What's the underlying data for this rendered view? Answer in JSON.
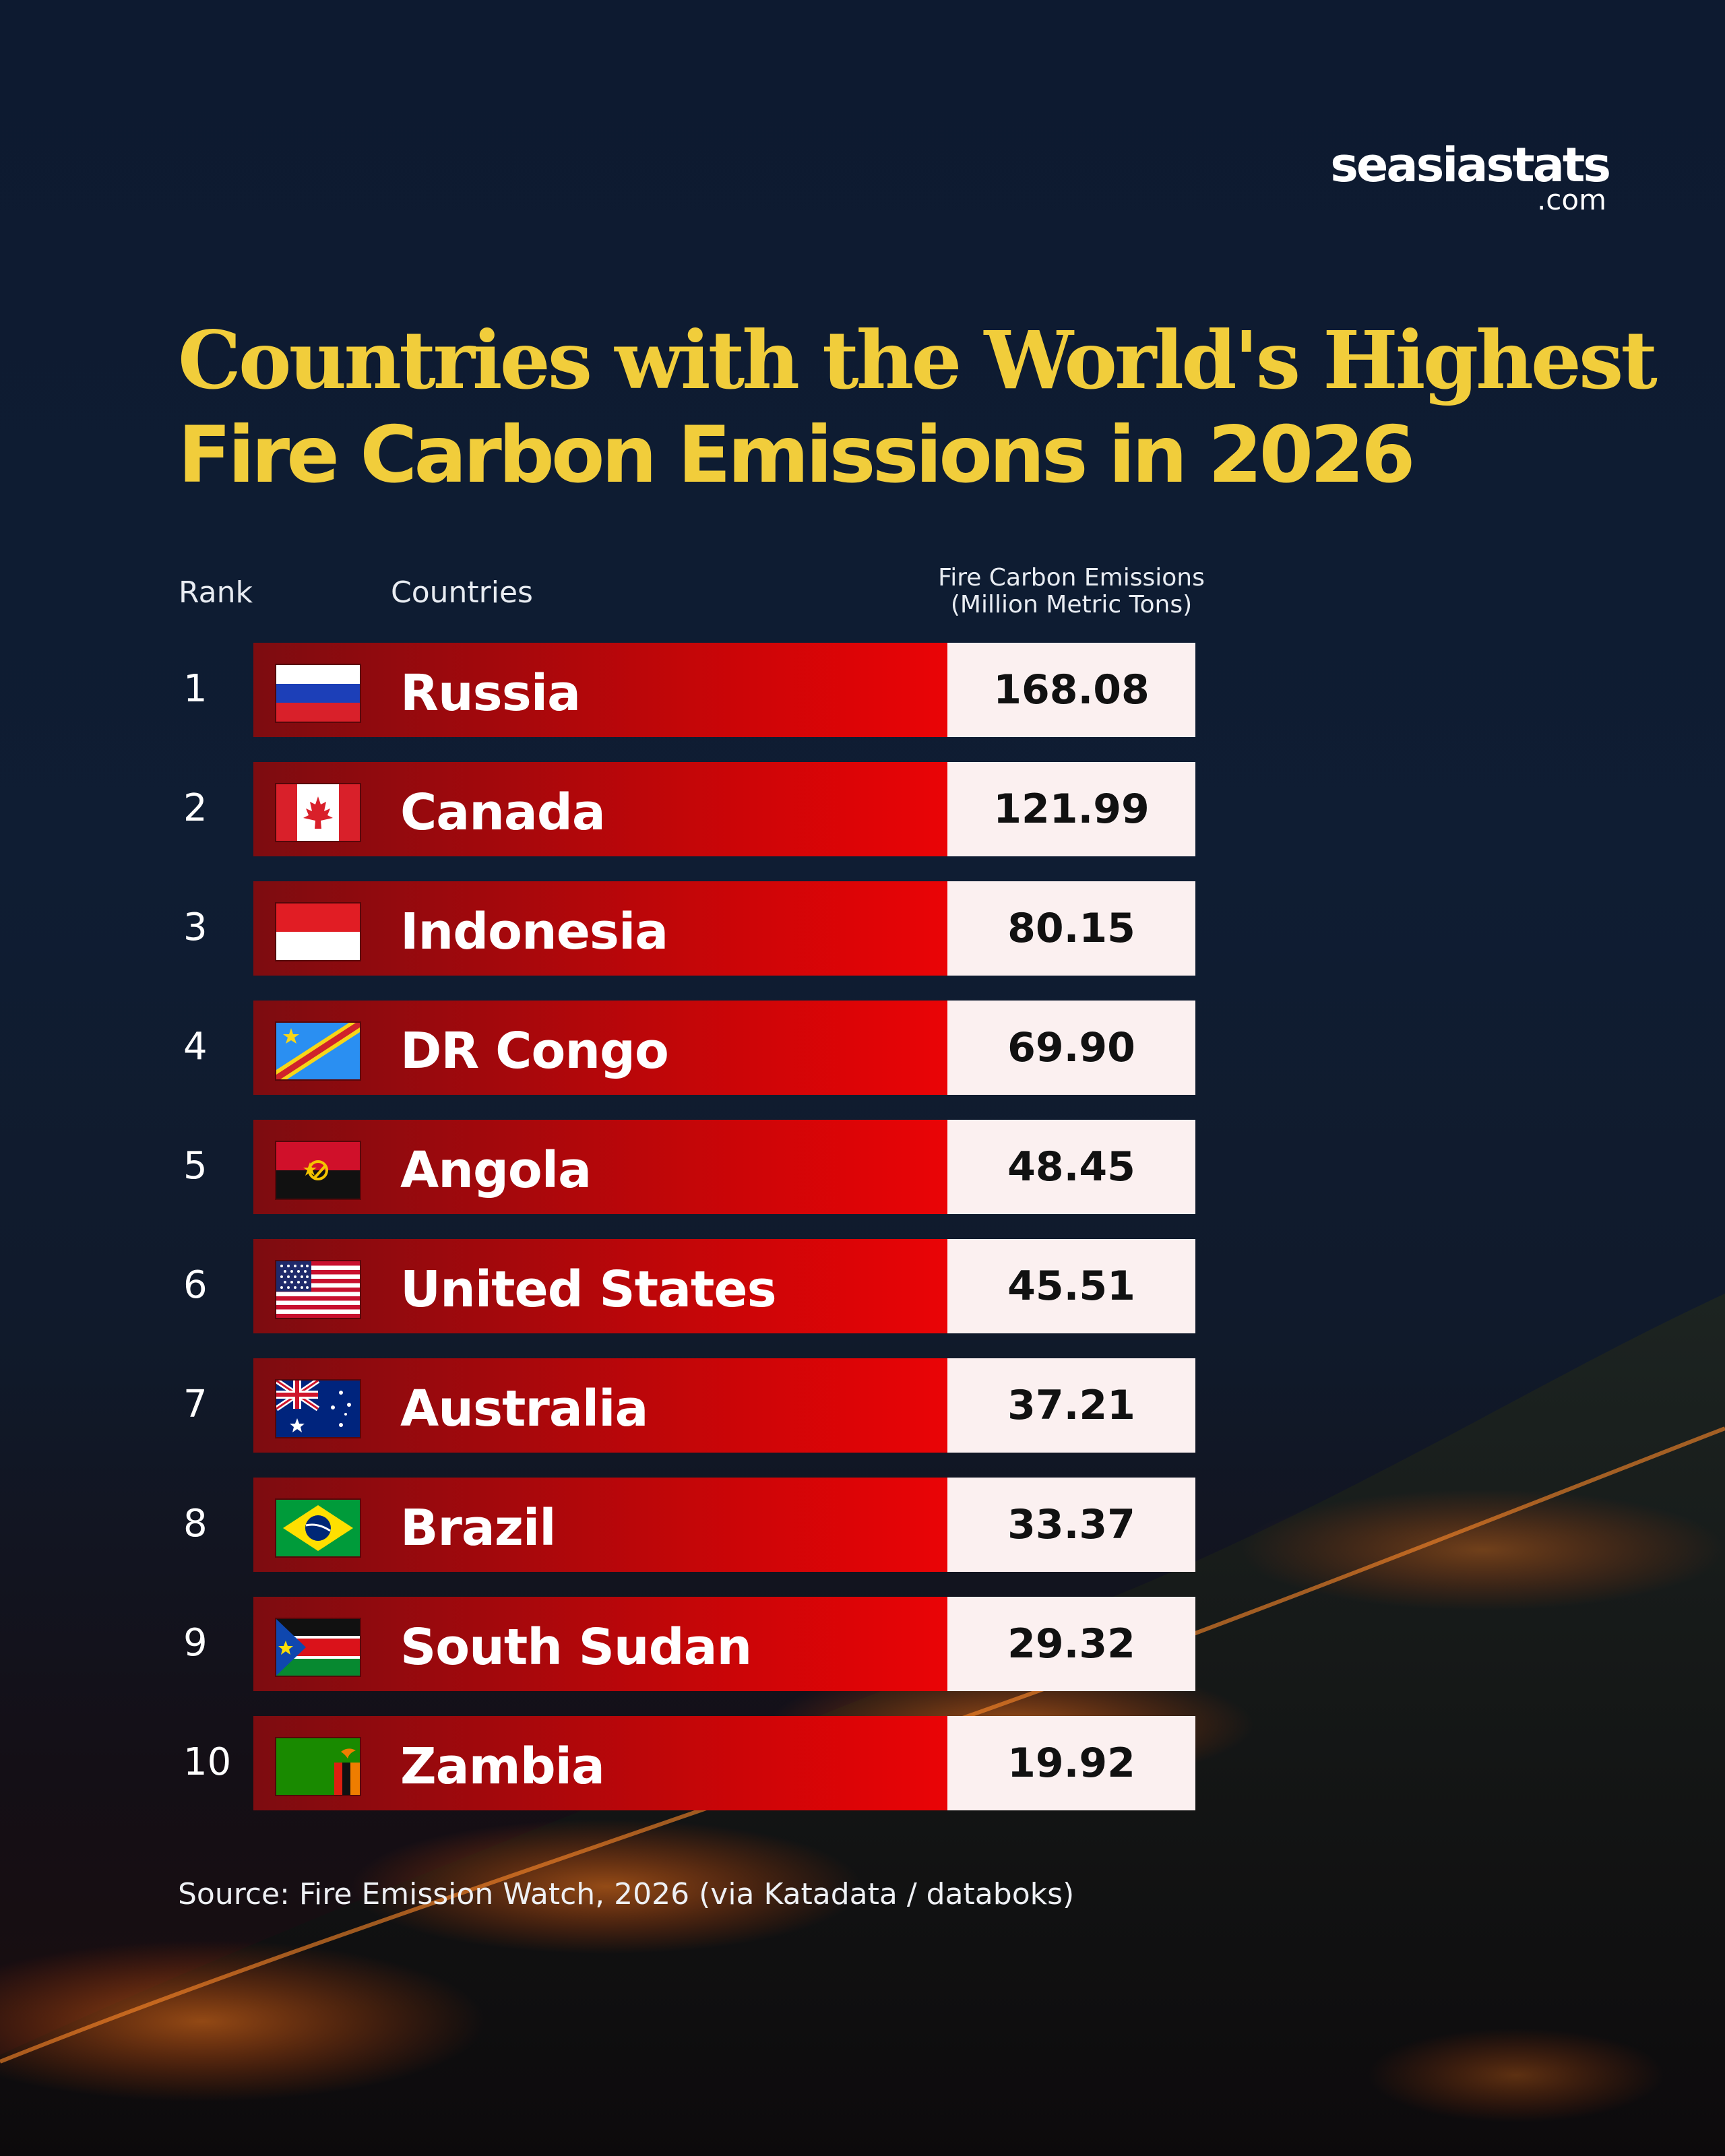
{
  "brand": {
    "name": "seasiastats",
    "suffix": ".com"
  },
  "title_line1": "Countries with the World's Highest",
  "title_line2": "Fire Carbon Emissions in 2026",
  "columns": {
    "rank": "Rank",
    "country": "Countries",
    "value_line1": "Fire Carbon Emissions",
    "value_line2": "(Million Metric Tons)"
  },
  "source": "Source: Fire Emission Watch, 2026 (via Katadata / databoks)",
  "colors": {
    "title": "#f1cd3b",
    "bar_start": "#7d0c10",
    "bar_end": "#ea0406",
    "value_box": "#fbf0f0",
    "background": "#0f1d33"
  },
  "chart_data": {
    "type": "table",
    "title": "Countries with the World's Highest Fire Carbon Emissions in 2026",
    "ylabel": "Fire Carbon Emissions (Million Metric Tons)",
    "rows": [
      {
        "rank": "1",
        "country": "Russia",
        "value": "168.08",
        "flag": "russia-flag"
      },
      {
        "rank": "2",
        "country": "Canada",
        "value": "121.99",
        "flag": "canada-flag"
      },
      {
        "rank": "3",
        "country": "Indonesia",
        "value": "80.15",
        "flag": "indonesia-flag"
      },
      {
        "rank": "4",
        "country": "DR Congo",
        "value": "69.90",
        "flag": "dr-congo-flag"
      },
      {
        "rank": "5",
        "country": "Angola",
        "value": "48.45",
        "flag": "angola-flag"
      },
      {
        "rank": "6",
        "country": "United States",
        "value": "45.51",
        "flag": "united-states-flag"
      },
      {
        "rank": "7",
        "country": "Australia",
        "value": "37.21",
        "flag": "australia-flag"
      },
      {
        "rank": "8",
        "country": "Brazil",
        "value": "33.37",
        "flag": "brazil-flag"
      },
      {
        "rank": "9",
        "country": "South Sudan",
        "value": "29.32",
        "flag": "south-sudan-flag"
      },
      {
        "rank": "10",
        "country": "Zambia",
        "value": "19.92",
        "flag": "zambia-flag"
      }
    ]
  }
}
